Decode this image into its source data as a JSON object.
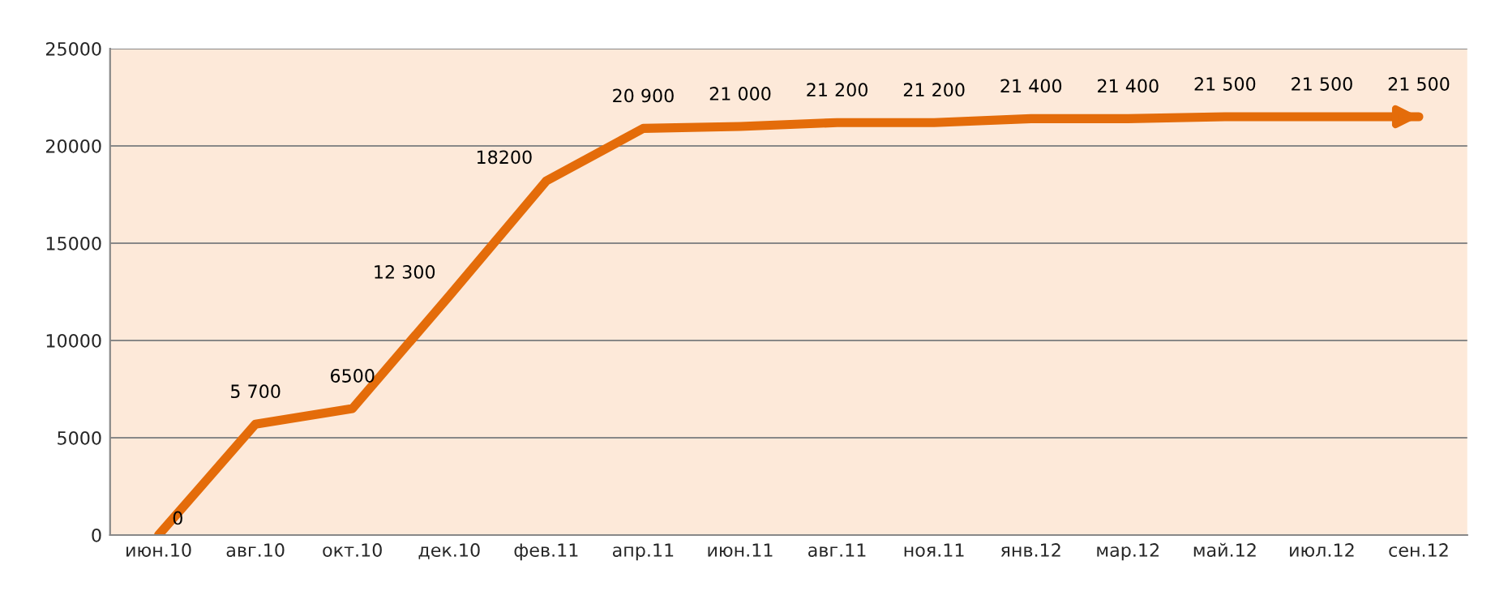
{
  "chart_data": {
    "type": "line",
    "categories": [
      "июн.10",
      "авг.10",
      "окт.10",
      "дек.10",
      "фев.11",
      "апр.11",
      "июн.11",
      "авг.11",
      "ноя.11",
      "янв.12",
      "мар.12",
      "май.12",
      "июл.12",
      "сен.12"
    ],
    "series": [
      {
        "color": "#e46c0a",
        "values": [
          0,
          5700,
          6500,
          12300,
          18200,
          20900,
          21000,
          21200,
          21200,
          21400,
          21400,
          21500,
          21500,
          21500
        ],
        "value_labels": [
          "0",
          "5 700",
          "6500",
          "12 300",
          "18200",
          "20 900",
          "21 000",
          "21 200",
          "21 200",
          "21 400",
          "21 400",
          "21 500",
          "21 500",
          "21 500"
        ]
      }
    ],
    "ylim": [
      0,
      25000
    ],
    "yticks": [
      0,
      5000,
      10000,
      15000,
      20000,
      25000
    ],
    "grid": "y",
    "legend": false,
    "marker": "none",
    "line_style": "solid"
  }
}
